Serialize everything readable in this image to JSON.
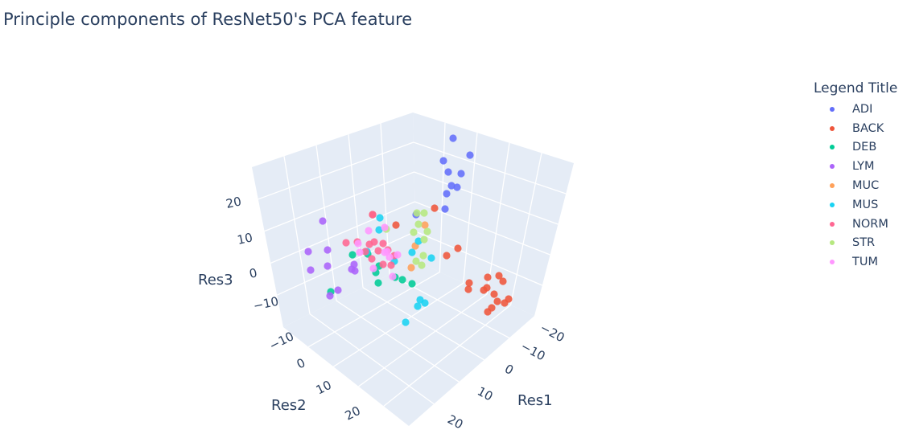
{
  "chart_data": {
    "type": "scatter3d",
    "title": "Principle components of ResNet50's PCA feature",
    "legend": {
      "title": "Legend Title",
      "placement": "right"
    },
    "axes": {
      "x": {
        "title": "Res1",
        "ticks": [
          "−20",
          "−10",
          "0",
          "10",
          "20"
        ]
      },
      "y": {
        "title": "Res2",
        "ticks": [
          "−10",
          "0",
          "10",
          "20"
        ]
      },
      "z": {
        "title": "Res3",
        "ticks": [
          "−10",
          "0",
          "10",
          "20"
        ]
      }
    },
    "series": [
      {
        "name": "ADI",
        "color": "#636efa",
        "points": [
          [
            563,
            172
          ],
          [
            584,
            193
          ],
          [
            551,
            200
          ],
          [
            557,
            214
          ],
          [
            573,
            216
          ],
          [
            561,
            231
          ],
          [
            568,
            233
          ],
          [
            555,
            241
          ],
          [
            553,
            260
          ],
          [
            517,
            267
          ]
        ]
      },
      {
        "name": "BACK",
        "color": "#ef553b",
        "points": [
          [
            540,
            259
          ],
          [
            463,
            267
          ],
          [
            569,
            309
          ],
          [
            555,
            318
          ],
          [
            583,
            352
          ],
          [
            606,
            345
          ],
          [
            620,
            343
          ],
          [
            625,
            350
          ],
          [
            605,
            358
          ],
          [
            601,
            361
          ],
          [
            582,
            360
          ],
          [
            614,
            366
          ],
          [
            618,
            375
          ],
          [
            627,
            377
          ],
          [
            632,
            372
          ],
          [
            611,
            383
          ],
          [
            606,
            388
          ],
          [
            492,
            280
          ]
        ]
      },
      {
        "name": "DEB",
        "color": "#00cc96",
        "points": [
          [
            438,
            317
          ],
          [
            457,
            316
          ],
          [
            471,
            331
          ],
          [
            467,
            339
          ],
          [
            491,
            345
          ],
          [
            500,
            348
          ],
          [
            512,
            353
          ],
          [
            470,
            352
          ],
          [
            411,
            363
          ]
        ]
      },
      {
        "name": "LYM",
        "color": "#ab63fa",
        "points": [
          [
            401,
            275
          ],
          [
            407,
            311
          ],
          [
            383,
            313
          ],
          [
            407,
            331
          ],
          [
            386,
            336
          ],
          [
            440,
            329
          ],
          [
            441,
            337
          ],
          [
            437,
            335
          ],
          [
            420,
            361
          ],
          [
            410,
            368
          ]
        ]
      },
      {
        "name": "MUC",
        "color": "#ffa15a",
        "points": [
          [
            528,
            280
          ],
          [
            516,
            306
          ],
          [
            511,
            333
          ]
        ]
      },
      {
        "name": "MUS",
        "color": "#19d3f3",
        "points": [
          [
            472,
            271
          ],
          [
            471,
            286
          ],
          [
            520,
            300
          ],
          [
            512,
            314
          ],
          [
            536,
            321
          ],
          [
            522,
            373
          ],
          [
            528,
            377
          ],
          [
            519,
            381
          ],
          [
            504,
            401
          ],
          [
            456,
            313
          ],
          [
            490,
            325
          ]
        ]
      },
      {
        "name": "NORM",
        "color": "#ff6692",
        "points": [
          [
            463,
            267
          ],
          [
            430,
            302
          ],
          [
            444,
            301
          ],
          [
            459,
            304
          ],
          [
            465,
            301
          ],
          [
            476,
            303
          ],
          [
            482,
            311
          ],
          [
            454,
            313
          ],
          [
            462,
            322
          ],
          [
            486,
            330
          ],
          [
            476,
            329
          ],
          [
            490,
            318
          ],
          [
            470,
            312
          ]
        ]
      },
      {
        "name": "STR",
        "color": "#b6e880",
        "points": [
          [
            518,
            265
          ],
          [
            527,
            265
          ],
          [
            520,
            279
          ],
          [
            531,
            288
          ],
          [
            514,
            289
          ],
          [
            527,
            298
          ],
          [
            526,
            318
          ],
          [
            517,
            325
          ],
          [
            524,
            330
          ],
          [
            480,
            285
          ]
        ]
      },
      {
        "name": "TUM",
        "color": "#ff97ff",
        "points": [
          [
            458,
            287
          ],
          [
            478,
            283
          ],
          [
            445,
            303
          ],
          [
            447,
            314
          ],
          [
            478,
            314
          ],
          [
            494,
            317
          ],
          [
            464,
            334
          ],
          [
            488,
            344
          ],
          [
            481,
            313
          ],
          [
            484,
            320
          ]
        ]
      }
    ]
  }
}
